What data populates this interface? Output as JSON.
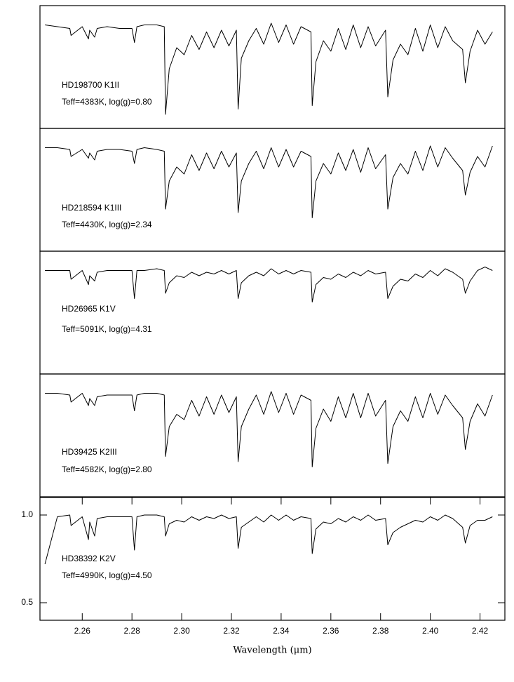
{
  "chart_data": [
    {
      "type": "line",
      "title": "HD198700  K1II",
      "subtitle": "Teff=4383K,  log(g)=0.80",
      "color": "#000000",
      "xlim": [
        2.243,
        2.43
      ],
      "ylim": [
        0.4,
        1.1
      ],
      "x": [
        2.245,
        2.25,
        2.255,
        2.2555,
        2.26,
        2.2625,
        2.263,
        2.265,
        2.266,
        2.27,
        2.275,
        2.28,
        2.281,
        2.282,
        2.285,
        2.29,
        2.293,
        2.2935,
        2.295,
        2.298,
        2.301,
        2.304,
        2.307,
        2.31,
        2.313,
        2.316,
        2.319,
        2.322,
        2.3227,
        2.324,
        2.327,
        2.33,
        2.333,
        2.336,
        2.339,
        2.342,
        2.345,
        2.348,
        2.352,
        2.3525,
        2.354,
        2.357,
        2.36,
        2.363,
        2.366,
        2.369,
        2.372,
        2.375,
        2.378,
        2.382,
        2.3829,
        2.385,
        2.388,
        2.391,
        2.394,
        2.397,
        2.4,
        2.403,
        2.406,
        2.409,
        2.413,
        2.4141,
        2.416,
        2.419,
        2.422,
        2.425
      ],
      "values": [
        0.99,
        0.98,
        0.97,
        0.93,
        0.98,
        0.91,
        0.96,
        0.92,
        0.97,
        0.98,
        0.97,
        0.97,
        0.89,
        0.98,
        0.99,
        0.99,
        0.98,
        0.48,
        0.74,
        0.86,
        0.82,
        0.93,
        0.85,
        0.95,
        0.86,
        0.96,
        0.87,
        0.96,
        0.51,
        0.8,
        0.9,
        0.97,
        0.88,
        1.0,
        0.89,
        0.99,
        0.88,
        0.98,
        0.95,
        0.53,
        0.78,
        0.9,
        0.84,
        0.97,
        0.85,
        0.99,
        0.86,
        0.98,
        0.87,
        0.96,
        0.58,
        0.79,
        0.88,
        0.82,
        0.97,
        0.84,
        0.99,
        0.86,
        0.98,
        0.9,
        0.85,
        0.66,
        0.84,
        0.96,
        0.88,
        0.95
      ]
    },
    {
      "type": "line",
      "title": "HD218594  K1III",
      "subtitle": "Teff=4430K,  log(g)=2.34",
      "color": "#000000",
      "xlim": [
        2.243,
        2.43
      ],
      "ylim": [
        0.4,
        1.1
      ],
      "x": [
        2.245,
        2.25,
        2.255,
        2.2555,
        2.26,
        2.2625,
        2.263,
        2.265,
        2.266,
        2.27,
        2.275,
        2.28,
        2.281,
        2.282,
        2.285,
        2.29,
        2.293,
        2.2935,
        2.295,
        2.298,
        2.301,
        2.304,
        2.307,
        2.31,
        2.313,
        2.316,
        2.319,
        2.322,
        2.3227,
        2.324,
        2.327,
        2.33,
        2.333,
        2.336,
        2.339,
        2.342,
        2.345,
        2.348,
        2.352,
        2.3525,
        2.354,
        2.357,
        2.36,
        2.363,
        2.366,
        2.369,
        2.372,
        2.375,
        2.378,
        2.382,
        2.3829,
        2.385,
        2.388,
        2.391,
        2.394,
        2.397,
        2.4,
        2.403,
        2.406,
        2.409,
        2.413,
        2.4141,
        2.416,
        2.419,
        2.422,
        2.425
      ],
      "values": [
        0.99,
        0.99,
        0.98,
        0.94,
        0.98,
        0.93,
        0.96,
        0.92,
        0.97,
        0.98,
        0.98,
        0.97,
        0.9,
        0.98,
        0.99,
        0.98,
        0.97,
        0.64,
        0.8,
        0.88,
        0.84,
        0.95,
        0.86,
        0.96,
        0.87,
        0.97,
        0.88,
        0.96,
        0.62,
        0.8,
        0.9,
        0.97,
        0.87,
        0.99,
        0.88,
        0.98,
        0.88,
        0.97,
        0.94,
        0.59,
        0.8,
        0.9,
        0.84,
        0.96,
        0.86,
        0.98,
        0.85,
        0.99,
        0.87,
        0.95,
        0.64,
        0.82,
        0.9,
        0.84,
        0.97,
        0.86,
        1.0,
        0.88,
        0.99,
        0.93,
        0.86,
        0.72,
        0.85,
        0.94,
        0.88,
        1.0
      ]
    },
    {
      "type": "line",
      "title": "HD26965  K1V",
      "subtitle": "Teff=5091K,  log(g)=4.31",
      "color": "#000000",
      "xlim": [
        2.243,
        2.43
      ],
      "ylim": [
        0.4,
        1.1
      ],
      "x": [
        2.245,
        2.25,
        2.255,
        2.2555,
        2.26,
        2.2625,
        2.263,
        2.265,
        2.266,
        2.27,
        2.275,
        2.28,
        2.281,
        2.282,
        2.285,
        2.29,
        2.293,
        2.2935,
        2.295,
        2.298,
        2.301,
        2.304,
        2.307,
        2.31,
        2.313,
        2.316,
        2.319,
        2.322,
        2.3227,
        2.324,
        2.327,
        2.33,
        2.333,
        2.336,
        2.339,
        2.342,
        2.345,
        2.348,
        2.352,
        2.3525,
        2.354,
        2.357,
        2.36,
        2.363,
        2.366,
        2.369,
        2.372,
        2.375,
        2.378,
        2.382,
        2.3829,
        2.385,
        2.388,
        2.391,
        2.394,
        2.397,
        2.4,
        2.403,
        2.406,
        2.409,
        2.413,
        2.4141,
        2.416,
        2.419,
        2.422,
        2.425
      ],
      "values": [
        0.99,
        0.99,
        0.99,
        0.94,
        0.99,
        0.91,
        0.96,
        0.93,
        0.98,
        0.99,
        0.99,
        0.99,
        0.83,
        0.99,
        0.99,
        1.0,
        0.99,
        0.86,
        0.92,
        0.96,
        0.95,
        0.98,
        0.96,
        0.98,
        0.97,
        0.99,
        0.97,
        0.99,
        0.83,
        0.92,
        0.96,
        0.98,
        0.96,
        1.0,
        0.97,
        0.99,
        0.97,
        0.99,
        0.98,
        0.81,
        0.91,
        0.95,
        0.94,
        0.97,
        0.95,
        0.98,
        0.96,
        0.99,
        0.97,
        0.98,
        0.83,
        0.9,
        0.94,
        0.93,
        0.97,
        0.95,
        0.99,
        0.96,
        1.0,
        0.98,
        0.94,
        0.86,
        0.93,
        0.99,
        1.01,
        0.99
      ]
    },
    {
      "type": "line",
      "title": "HD39425  K2III",
      "subtitle": "Teff=4582K,  log(g)=2.80",
      "color": "#000000",
      "xlim": [
        2.243,
        2.43
      ],
      "ylim": [
        0.4,
        1.1
      ],
      "x": [
        2.245,
        2.25,
        2.255,
        2.2555,
        2.26,
        2.2625,
        2.263,
        2.265,
        2.266,
        2.27,
        2.275,
        2.28,
        2.281,
        2.282,
        2.285,
        2.29,
        2.293,
        2.2935,
        2.295,
        2.298,
        2.301,
        2.304,
        2.307,
        2.31,
        2.313,
        2.316,
        2.319,
        2.322,
        2.3227,
        2.324,
        2.327,
        2.33,
        2.333,
        2.336,
        2.339,
        2.342,
        2.345,
        2.348,
        2.352,
        2.3525,
        2.354,
        2.357,
        2.36,
        2.363,
        2.366,
        2.369,
        2.372,
        2.375,
        2.378,
        2.382,
        2.3829,
        2.385,
        2.388,
        2.391,
        2.394,
        2.397,
        2.4,
        2.403,
        2.406,
        2.409,
        2.413,
        2.4141,
        2.416,
        2.419,
        2.422,
        2.425
      ],
      "values": [
        0.99,
        0.99,
        0.98,
        0.94,
        0.99,
        0.92,
        0.96,
        0.92,
        0.97,
        0.98,
        0.98,
        0.98,
        0.89,
        0.98,
        0.99,
        0.99,
        0.98,
        0.63,
        0.8,
        0.87,
        0.84,
        0.95,
        0.86,
        0.97,
        0.87,
        0.98,
        0.88,
        0.97,
        0.6,
        0.8,
        0.9,
        0.98,
        0.87,
        1.0,
        0.88,
        0.99,
        0.87,
        0.98,
        0.95,
        0.57,
        0.79,
        0.9,
        0.83,
        0.97,
        0.85,
        0.99,
        0.85,
        0.99,
        0.86,
        0.95,
        0.59,
        0.8,
        0.89,
        0.83,
        0.97,
        0.85,
        0.99,
        0.87,
        0.98,
        0.92,
        0.85,
        0.67,
        0.83,
        0.93,
        0.86,
        0.98
      ]
    },
    {
      "type": "line",
      "title": "HD38392  K2V",
      "subtitle": "Teff=4990K,  log(g)=4.50",
      "color": "#000000",
      "xlabel": "Wavelength (μm)",
      "xlim": [
        2.243,
        2.43
      ],
      "ylim": [
        0.4,
        1.1
      ],
      "xticks": [
        2.26,
        2.28,
        {
          "value": 2.3,
          "label": "2.30"
        },
        2.32,
        2.34,
        2.36,
        2.38,
        {
          "value": 2.4,
          "label": "2.40"
        },
        2.42
      ],
      "yticks": [
        0.5,
        {
          "value": 1,
          "label": "1.0"
        }
      ],
      "x": [
        2.245,
        2.25,
        2.255,
        2.2555,
        2.26,
        2.2625,
        2.263,
        2.265,
        2.266,
        2.27,
        2.275,
        2.28,
        2.281,
        2.282,
        2.285,
        2.29,
        2.293,
        2.2935,
        2.295,
        2.298,
        2.301,
        2.304,
        2.307,
        2.31,
        2.313,
        2.316,
        2.319,
        2.322,
        2.3227,
        2.324,
        2.327,
        2.33,
        2.333,
        2.336,
        2.339,
        2.342,
        2.345,
        2.348,
        2.352,
        2.3525,
        2.354,
        2.357,
        2.36,
        2.363,
        2.366,
        2.369,
        2.372,
        2.375,
        2.378,
        2.382,
        2.3829,
        2.385,
        2.388,
        2.391,
        2.394,
        2.397,
        2.4,
        2.403,
        2.406,
        2.409,
        2.413,
        2.4141,
        2.416,
        2.419,
        2.422,
        2.425
      ],
      "values": [
        0.72,
        0.99,
        1.0,
        0.94,
        0.99,
        0.86,
        0.96,
        0.88,
        0.98,
        0.99,
        0.99,
        0.99,
        0.8,
        0.99,
        1.0,
        1.0,
        0.99,
        0.88,
        0.95,
        0.97,
        0.96,
        0.99,
        0.97,
        0.99,
        0.98,
        1.0,
        0.98,
        0.99,
        0.81,
        0.93,
        0.96,
        0.99,
        0.96,
        1.0,
        0.97,
        1.0,
        0.97,
        0.99,
        0.98,
        0.78,
        0.92,
        0.96,
        0.95,
        0.98,
        0.96,
        0.99,
        0.97,
        1.0,
        0.97,
        0.98,
        0.83,
        0.9,
        0.93,
        0.95,
        0.97,
        0.96,
        0.99,
        0.97,
        1.0,
        0.98,
        0.93,
        0.84,
        0.94,
        0.97,
        0.97,
        0.99
      ]
    }
  ]
}
